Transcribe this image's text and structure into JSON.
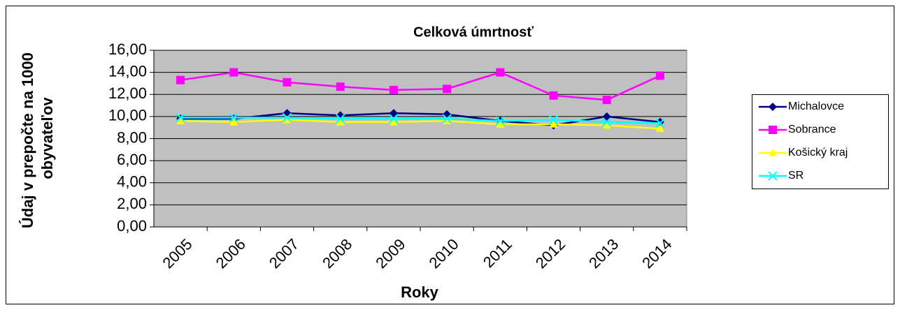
{
  "chart_data": {
    "type": "line",
    "title": "Celková úmrtnosť",
    "ylabel": [
      "Údaj v prepočte na 1000",
      "obyvateľov"
    ],
    "xlabel": "Roky",
    "categories": [
      "2005",
      "2006",
      "2007",
      "2008",
      "2009",
      "2010",
      "2011",
      "2012",
      "2013",
      "2014"
    ],
    "series": [
      {
        "name": "Michalovce",
        "color": "#000080",
        "marker": "diamond",
        "values": [
          9.8,
          9.8,
          10.3,
          10.1,
          10.3,
          10.2,
          9.6,
          9.2,
          10.0,
          9.5
        ]
      },
      {
        "name": "Sobrance",
        "color": "#ff00ff",
        "marker": "square",
        "values": [
          13.3,
          14.0,
          13.1,
          12.7,
          12.4,
          12.5,
          14.0,
          11.9,
          11.5,
          13.7
        ]
      },
      {
        "name": "Košický kraj",
        "color": "#ffff00",
        "marker": "triangle",
        "values": [
          9.6,
          9.5,
          9.7,
          9.5,
          9.5,
          9.6,
          9.3,
          9.3,
          9.2,
          8.9
        ]
      },
      {
        "name": "SR",
        "color": "#00ffff",
        "marker": "x",
        "values": [
          9.9,
          9.9,
          9.9,
          9.8,
          9.8,
          9.8,
          9.6,
          9.7,
          9.5,
          9.4
        ]
      }
    ],
    "ylim": [
      0,
      16
    ],
    "yticks": [
      {
        "value": 0,
        "label": "0,00"
      },
      {
        "value": 2,
        "label": "2,00"
      },
      {
        "value": 4,
        "label": "4,00"
      },
      {
        "value": 6,
        "label": "6,00"
      },
      {
        "value": 8,
        "label": "8,00"
      },
      {
        "value": 10,
        "label": "10,00"
      },
      {
        "value": 12,
        "label": "12,00"
      },
      {
        "value": 14,
        "label": "14,00"
      },
      {
        "value": 16,
        "label": "16,00"
      }
    ],
    "grid": true,
    "legend": "right",
    "plot_background": "#c0c0c0"
  }
}
